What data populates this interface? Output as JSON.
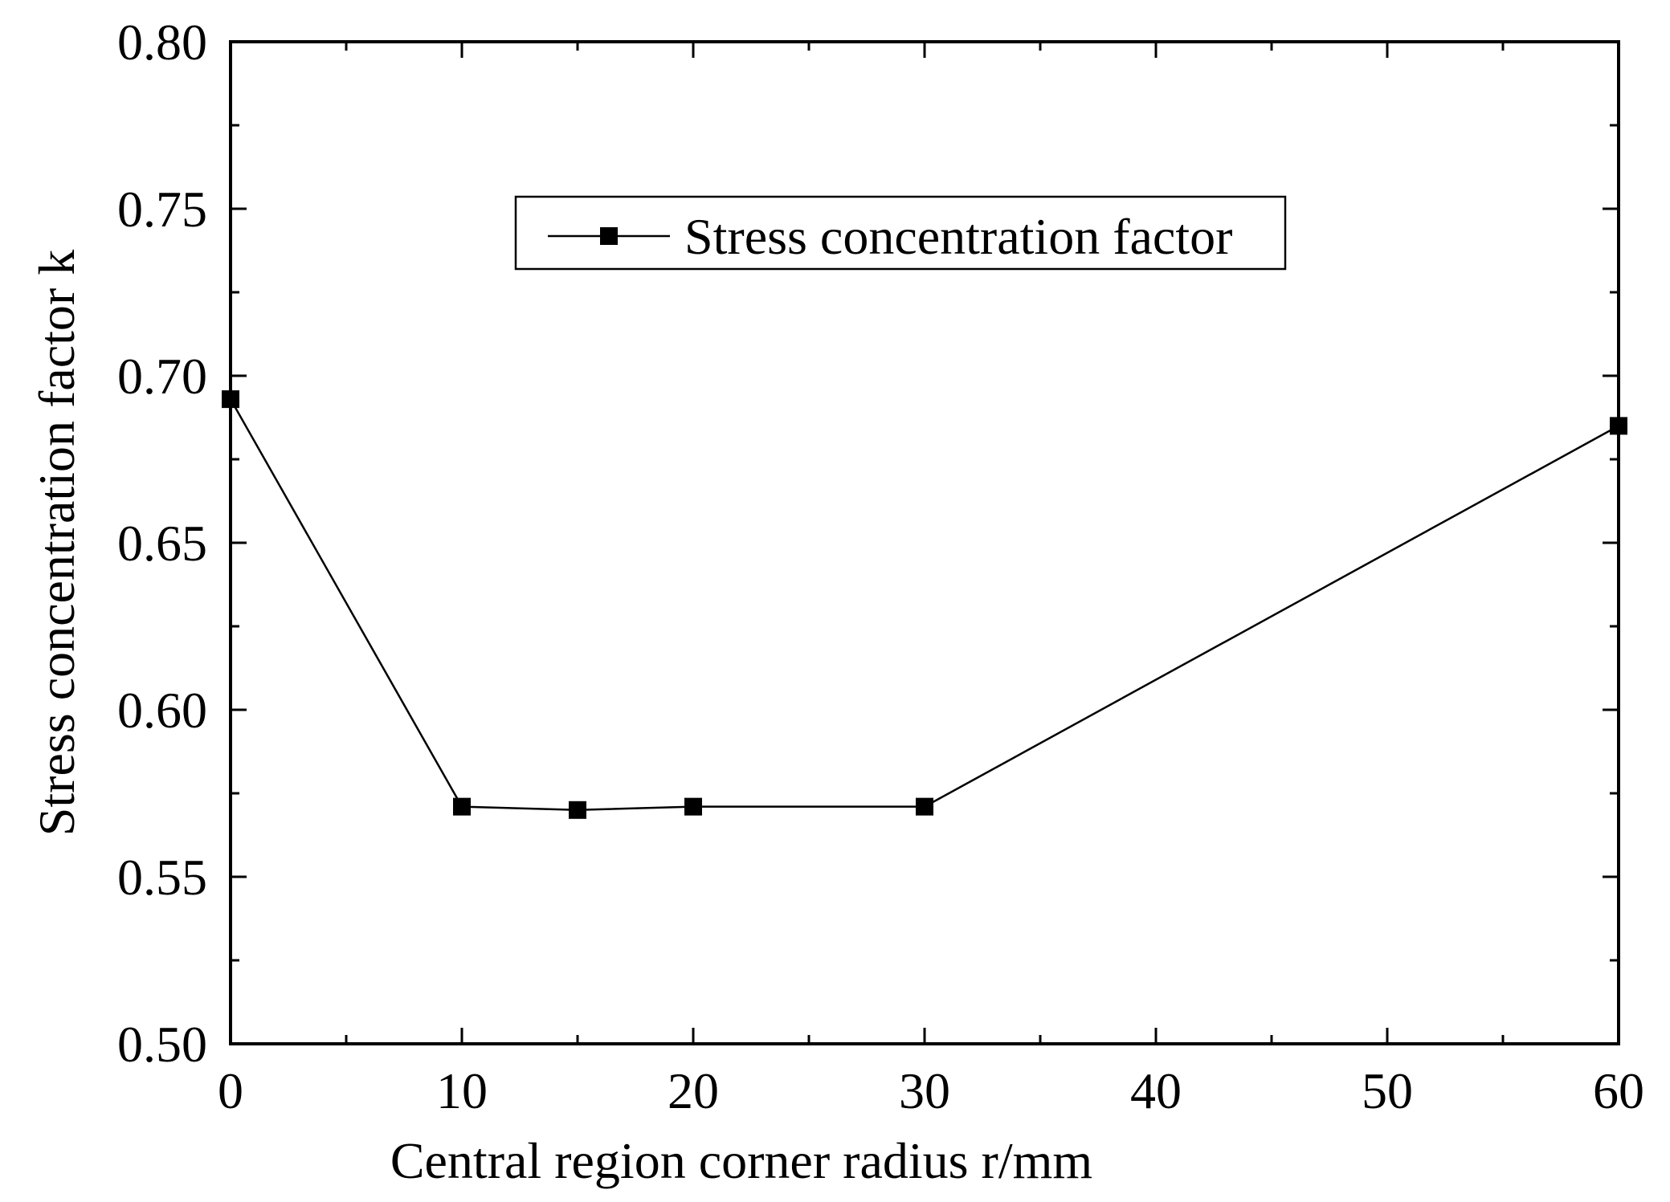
{
  "chart_data": {
    "type": "line",
    "title": "",
    "xlabel": "Central region corner radius r/mm",
    "ylabel": "Stress concentration factor k",
    "xlim": [
      0,
      60
    ],
    "ylim": [
      0.5,
      0.8
    ],
    "xticks": [
      0,
      10,
      20,
      30,
      40,
      50,
      60
    ],
    "xtick_labels": [
      "0",
      "10",
      "20",
      "30",
      "40",
      "50",
      "60"
    ],
    "xminor_step": 5,
    "yticks": [
      0.5,
      0.55,
      0.6,
      0.65,
      0.7,
      0.75,
      0.8
    ],
    "ytick_labels": [
      "0.50",
      "0.55",
      "0.60",
      "0.65",
      "0.70",
      "0.75",
      "0.80"
    ],
    "yminor_step": 0.025,
    "grid": false,
    "legend_position": "top-center",
    "series": [
      {
        "name": "Stress concentration factor",
        "marker": "square",
        "color": "#000000",
        "x": [
          0,
          10,
          15,
          20,
          30,
          60
        ],
        "values": [
          0.693,
          0.571,
          0.57,
          0.571,
          0.571,
          0.685
        ]
      }
    ]
  }
}
